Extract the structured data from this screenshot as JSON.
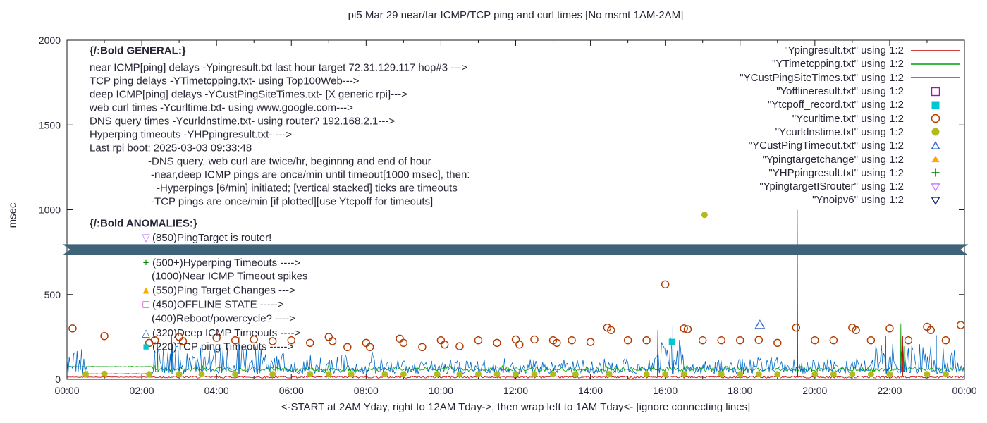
{
  "chart_data": {
    "type": "line",
    "title": "pi5 Mar 29  near/far ICMP/TCP ping and curl times [No msmt 1AM-2AM]",
    "xlabel": "<-START at 2AM Yday, right to 12AM Tday->, then wrap left to 1AM Tday<- [ignore connecting lines]",
    "ylabel": "msec",
    "xlim": [
      0,
      24
    ],
    "ylim": [
      0,
      2000
    ],
    "grid": false,
    "legend_position": "top-right",
    "xticks": [
      {
        "label": "00:00",
        "t": 0
      },
      {
        "label": "02:00",
        "t": 2
      },
      {
        "label": "04:00",
        "t": 4
      },
      {
        "label": "06:00",
        "t": 6
      },
      {
        "label": "08:00",
        "t": 8
      },
      {
        "label": "10:00",
        "t": 10
      },
      {
        "label": "12:00",
        "t": 12
      },
      {
        "label": "14:00",
        "t": 14
      },
      {
        "label": "16:00",
        "t": 16
      },
      {
        "label": "18:00",
        "t": 18
      },
      {
        "label": "20:00",
        "t": 20
      },
      {
        "label": "22:00",
        "t": 22
      },
      {
        "label": "00:00",
        "t": 24
      }
    ],
    "yticks": [
      {
        "label": "0",
        "v": 0
      },
      {
        "label": "500",
        "v": 500
      },
      {
        "label": "1000",
        "v": 1000
      },
      {
        "label": "1500",
        "v": 1500
      },
      {
        "label": "2000",
        "v": 2000
      }
    ],
    "legend": [
      {
        "label": "\"Ypingresult.txt\" using 1:2",
        "marker": "line",
        "color": "#c00000"
      },
      {
        "label": "\"YTimetcpping.txt\" using 1:2",
        "marker": "line",
        "color": "#00a000"
      },
      {
        "label": "\"YCustPingSiteTimes.txt\" using 1:2",
        "marker": "line",
        "color": "#0069c8"
      },
      {
        "label": "\"Yofflineresult.txt\" using 1:2",
        "marker": "square-open",
        "color": "#c000c0"
      },
      {
        "label": "\"Ytcpoff_record.txt\" using 1:2",
        "marker": "square",
        "color": "#00c8d0"
      },
      {
        "label": "\"Ycurltime.txt\" using 1:2",
        "marker": "circle-open",
        "color": "#b03a00"
      },
      {
        "label": "\"Ycurldnstime.txt\" using 1:2",
        "marker": "circle",
        "color": "#b2ba1e"
      },
      {
        "label": "\"YCustPingTimeout.txt\" using 1:2",
        "marker": "triangle-open",
        "color": "#3366cc"
      },
      {
        "label": "\"Ypingtargetchange\" using 1:2",
        "marker": "triangle",
        "color": "#ffa800"
      },
      {
        "label": "\"YHPpingresult.txt\" using 1:2",
        "marker": "plus",
        "color": "#008000"
      },
      {
        "label": "\"YpingtargetISrouter\" using 1:2",
        "marker": "tridown-open",
        "color": "#cc80ff"
      },
      {
        "label": "\"Ynoipv6\" using 1:2",
        "marker": "tridown-open",
        "color": "#1a237e"
      }
    ],
    "annotations": {
      "general": [
        {
          "x": 127,
          "y": 72,
          "text": "{/:Bold GENERAL:}",
          "bold": true
        },
        {
          "x": 127,
          "y": 96,
          "text": "near ICMP[ping] delays -Ypingresult.txt last hour target 72.31.129.117 hop#3 --->"
        },
        {
          "x": 127,
          "y": 115,
          "text": "TCP ping delays -YTimetcpping.txt- using Top100Web--->"
        },
        {
          "x": 127,
          "y": 134,
          "text": "deep ICMP[ping] delays -YCustPingSiteTimes.txt- [X generic rpi]--->"
        },
        {
          "x": 127,
          "y": 153,
          "text": "web curl times -Ycurltime.txt- using www.google.com--->"
        },
        {
          "x": 127,
          "y": 172,
          "text": "DNS query times -Ycurldnstime.txt- using router? 192.168.2.1--->"
        },
        {
          "x": 127,
          "y": 191,
          "text": "Hyperping timeouts -YHPpingresult.txt- --->"
        },
        {
          "x": 127,
          "y": 210,
          "text": "Last rpi boot: 2025-03-03 09:33:48"
        },
        {
          "x": 210,
          "y": 229,
          "text": "-DNS query, web curl are twice/hr, beginnng and end of hour"
        },
        {
          "x": 214,
          "y": 248,
          "text": "-near,deep ICMP pings are once/min until timeout[1000 msec], then:"
        },
        {
          "x": 222,
          "y": 267,
          "text": "-Hyperpings [6/min] initiated; [vertical stacked] ticks are timeouts"
        },
        {
          "x": 214,
          "y": 286,
          "text": "-TCP pings are once/min [if plotted][use Ytcpoff for timeouts]"
        }
      ],
      "anomalies": [
        {
          "x": 127,
          "y": 317,
          "text": "{/:Bold ANOMALIES:}",
          "bold": true
        },
        {
          "x": 199,
          "y": 337,
          "glyph": "▽",
          "glyph_color": "#cc80ff",
          "glyph_name": "tridown",
          "text": "(850)PingTarget is router!"
        },
        {
          "x": 199,
          "y": 373,
          "glyph": "+",
          "glyph_color": "#008000",
          "glyph_name": "plus",
          "text": "(500+)Hyperping Timeouts ---->"
        },
        {
          "x": 215,
          "y": 392,
          "text": "(1000)Near ICMP Timeout spikes"
        },
        {
          "x": 199,
          "y": 412,
          "glyph": "▲",
          "glyph_color": "#ffa800",
          "glyph_name": "triangle-up",
          "text": "(550)Ping Target Changes --->"
        },
        {
          "x": 199,
          "y": 432,
          "glyph": "□",
          "glyph_color": "#c000c0",
          "glyph_name": "square-open",
          "text": "(450)OFFLINE STATE ----->"
        },
        {
          "x": 215,
          "y": 452,
          "text": "(400)Reboot/powercycle? ---->"
        },
        {
          "x": 199,
          "y": 472,
          "glyph": "△",
          "glyph_color": "#3366cc",
          "glyph_name": "triangle-open",
          "text": "(320)Deep ICMP Timeouts ---->"
        },
        {
          "x": 199,
          "y": 492,
          "glyph": "■",
          "glyph_color": "#00c8d0",
          "glyph_name": "square-filled",
          "text": "(220)TCP ping Timeouts ----->"
        }
      ]
    },
    "band": {
      "y_center": 765,
      "y_half": 32,
      "x0": -0.12,
      "x1": 24.1,
      "color": "#3f6378"
    },
    "noise_series": [
      {
        "name": "YTimetcpping",
        "color": "#00a000",
        "base": 45,
        "jitter": 14,
        "seed": 77,
        "quiet": [
          0,
          2.3
        ],
        "quiet_y": 75,
        "zones": [
          [
            2.3,
            24,
            22
          ]
        ],
        "spikes": [
          [
            2.42,
            205
          ],
          [
            22.3,
            330
          ],
          [
            22.38,
            195
          ]
        ]
      },
      {
        "name": "YCustPingSiteTimes",
        "color": "#0069c8",
        "base": 30,
        "jitter": 22,
        "seed": 1234,
        "quiet": [
          0.55,
          2.3
        ],
        "quiet_y": 33,
        "zones": [
          [
            0,
            0.55,
            150
          ],
          [
            2.3,
            5.8,
            160
          ],
          [
            5.8,
            6.3,
            80
          ],
          [
            6.3,
            8.3,
            130
          ],
          [
            8.3,
            15.7,
            75
          ],
          [
            15.7,
            16.5,
            200
          ],
          [
            16.5,
            21.4,
            85
          ],
          [
            21.4,
            23.8,
            165
          ],
          [
            23.8,
            24.01,
            95
          ]
        ],
        "spikes": [
          [
            2.8,
            255
          ],
          [
            4.6,
            250
          ],
          [
            16.2,
            310
          ],
          [
            21.9,
            255
          ],
          [
            23.25,
            260
          ]
        ]
      },
      {
        "name": "Ypingresult",
        "color": "#c00000",
        "base": 13,
        "jitter": 6,
        "seed": 42,
        "quiet": [
          0,
          2.3
        ],
        "quiet_y": 13,
        "zones": [],
        "spikes": [
          [
            15.8,
            290
          ],
          [
            19.53,
            1000
          ],
          [
            22.35,
            255
          ]
        ]
      }
    ],
    "points": {
      "curl_times": {
        "marker": "circle-open",
        "color": "#b03a00",
        "size": 5,
        "data": [
          [
            0.15,
            300
          ],
          [
            1.0,
            255
          ],
          [
            2.2,
            215
          ],
          [
            2.35,
            230
          ],
          [
            3.0,
            250
          ],
          [
            3.1,
            225
          ],
          [
            4.0,
            245
          ],
          [
            4.5,
            230
          ],
          [
            5.0,
            235
          ],
          [
            5.5,
            225
          ],
          [
            6.0,
            230
          ],
          [
            6.5,
            215
          ],
          [
            7.0,
            250
          ],
          [
            7.1,
            225
          ],
          [
            7.5,
            190
          ],
          [
            8.0,
            215
          ],
          [
            8.1,
            190
          ],
          [
            8.9,
            240
          ],
          [
            9.0,
            215
          ],
          [
            9.5,
            190
          ],
          [
            10.0,
            230
          ],
          [
            10.1,
            205
          ],
          [
            10.5,
            195
          ],
          [
            11.0,
            230
          ],
          [
            11.5,
            215
          ],
          [
            12.0,
            235
          ],
          [
            12.1,
            205
          ],
          [
            12.5,
            235
          ],
          [
            13.0,
            230
          ],
          [
            13.1,
            215
          ],
          [
            13.5,
            230
          ],
          [
            14.0,
            220
          ],
          [
            14.45,
            305
          ],
          [
            14.55,
            290
          ],
          [
            15.0,
            230
          ],
          [
            15.5,
            230
          ],
          [
            16.0,
            560
          ],
          [
            16.5,
            300
          ],
          [
            16.6,
            295
          ],
          [
            17.0,
            230
          ],
          [
            17.5,
            230
          ],
          [
            18.0,
            230
          ],
          [
            18.5,
            232
          ],
          [
            19.0,
            215
          ],
          [
            19.5,
            305
          ],
          [
            20.0,
            230
          ],
          [
            20.5,
            230
          ],
          [
            21.0,
            305
          ],
          [
            21.1,
            290
          ],
          [
            21.5,
            230
          ],
          [
            22.0,
            300
          ],
          [
            22.5,
            230
          ],
          [
            23.0,
            310
          ],
          [
            23.1,
            290
          ],
          [
            23.5,
            230
          ],
          [
            23.9,
            320
          ]
        ]
      },
      "dns_times": {
        "marker": "circle",
        "color": "#b2ba1e",
        "size": 4.5,
        "data": [
          [
            0.5,
            30
          ],
          [
            1.0,
            32
          ],
          [
            2.2,
            30
          ],
          [
            3.0,
            30
          ],
          [
            3.6,
            30
          ],
          [
            4.5,
            30
          ],
          [
            5.5,
            30
          ],
          [
            6.5,
            30
          ],
          [
            7.0,
            30
          ],
          [
            7.6,
            30
          ],
          [
            8.5,
            30
          ],
          [
            9.0,
            30
          ],
          [
            9.9,
            30
          ],
          [
            10.5,
            30
          ],
          [
            11.0,
            30
          ],
          [
            11.5,
            30
          ],
          [
            12.0,
            30
          ],
          [
            12.5,
            30
          ],
          [
            13.0,
            30
          ],
          [
            13.6,
            30
          ],
          [
            14.5,
            30
          ],
          [
            15.5,
            30
          ],
          [
            16.0,
            30
          ],
          [
            16.5,
            30
          ],
          [
            17.05,
            970
          ],
          [
            17.5,
            30
          ],
          [
            18.0,
            30
          ],
          [
            18.5,
            30
          ],
          [
            19.0,
            30
          ],
          [
            20.0,
            30
          ],
          [
            20.5,
            30
          ],
          [
            21.0,
            30
          ],
          [
            21.5,
            30
          ],
          [
            22.0,
            30
          ],
          [
            23.0,
            30
          ],
          [
            23.5,
            30
          ]
        ]
      },
      "tcp_timeouts": {
        "marker": "square",
        "color": "#00c8d0",
        "size": 4.5,
        "data": [
          [
            16.18,
            220
          ]
        ]
      },
      "deep_icmp_timeouts": {
        "marker": "triangle-open",
        "color": "#3366cc",
        "size": 6.5,
        "data": [
          [
            18.53,
            320
          ]
        ]
      }
    }
  }
}
